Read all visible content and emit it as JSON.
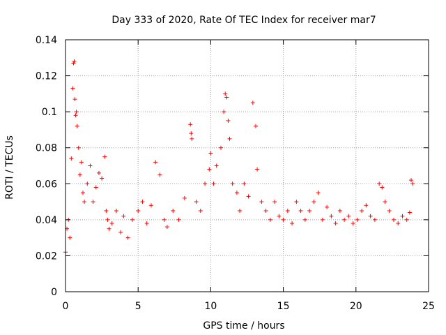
{
  "chart_data": {
    "type": "scatter",
    "title": "Day 333 of 2020, Rate Of TEC Index for receiver mar7",
    "xlabel": "GPS time / hours",
    "ylabel": "ROTI / TECUs",
    "xlim": [
      0,
      25
    ],
    "ylim": [
      0,
      0.14
    ],
    "x_ticks": [
      "0",
      "5",
      "10",
      "15",
      "20",
      "25"
    ],
    "y_ticks": [
      "0",
      "0.02",
      "0.04",
      "0.06",
      "0.08",
      "0.1",
      "0.12",
      "0.14"
    ],
    "grid": true,
    "marker": "+",
    "color": "#ff0000",
    "series": [
      {
        "x": [
          0.0,
          0.1,
          0.2,
          0.3,
          0.4,
          0.5,
          0.55,
          0.6,
          0.65,
          0.7,
          0.75,
          0.8,
          0.9,
          1.0,
          1.1,
          1.2,
          1.3,
          1.5,
          1.7,
          1.9,
          2.1,
          2.3,
          2.5,
          2.7,
          2.8,
          2.9,
          3.0,
          3.2,
          3.5,
          3.8,
          4.0,
          4.3,
          4.6,
          5.0,
          5.3,
          5.6,
          5.9,
          6.2,
          6.5,
          6.8,
          7.0,
          7.4,
          7.8,
          8.2,
          8.6,
          8.65,
          8.7,
          9.0,
          9.3,
          9.6,
          9.9,
          10.0,
          10.2,
          10.4,
          10.7,
          10.9,
          11.0,
          11.1,
          11.2,
          11.3,
          11.5,
          11.8,
          12.0,
          12.3,
          12.6,
          12.9,
          13.1,
          13.2,
          13.5,
          13.8,
          14.1,
          14.4,
          14.7,
          15.0,
          15.3,
          15.6,
          15.9,
          16.2,
          16.5,
          16.8,
          17.1,
          17.4,
          17.7,
          18.0,
          18.3,
          18.6,
          18.9,
          19.2,
          19.5,
          19.8,
          20.1,
          20.4,
          20.7,
          21.0,
          21.3,
          21.6,
          21.8,
          22.0,
          22.3,
          22.6,
          22.9,
          23.2,
          23.5,
          23.7,
          23.8,
          23.9
        ],
        "y": [
          0.022,
          0.035,
          0.04,
          0.03,
          0.074,
          0.113,
          0.127,
          0.128,
          0.107,
          0.098,
          0.1,
          0.092,
          0.08,
          0.065,
          0.072,
          0.055,
          0.05,
          0.06,
          0.07,
          0.05,
          0.058,
          0.066,
          0.063,
          0.075,
          0.045,
          0.04,
          0.035,
          0.038,
          0.045,
          0.033,
          0.042,
          0.03,
          0.04,
          0.045,
          0.05,
          0.038,
          0.048,
          0.072,
          0.065,
          0.04,
          0.036,
          0.045,
          0.04,
          0.052,
          0.093,
          0.088,
          0.085,
          0.05,
          0.045,
          0.06,
          0.068,
          0.077,
          0.06,
          0.07,
          0.08,
          0.1,
          0.11,
          0.108,
          0.095,
          0.085,
          0.06,
          0.055,
          0.045,
          0.06,
          0.053,
          0.105,
          0.092,
          0.068,
          0.05,
          0.045,
          0.04,
          0.05,
          0.042,
          0.04,
          0.045,
          0.038,
          0.05,
          0.045,
          0.04,
          0.045,
          0.05,
          0.055,
          0.04,
          0.047,
          0.042,
          0.038,
          0.045,
          0.04,
          0.042,
          0.038,
          0.04,
          0.045,
          0.048,
          0.042,
          0.04,
          0.06,
          0.058,
          0.05,
          0.045,
          0.04,
          0.038,
          0.042,
          0.04,
          0.044,
          0.062,
          0.06
        ]
      }
    ]
  }
}
